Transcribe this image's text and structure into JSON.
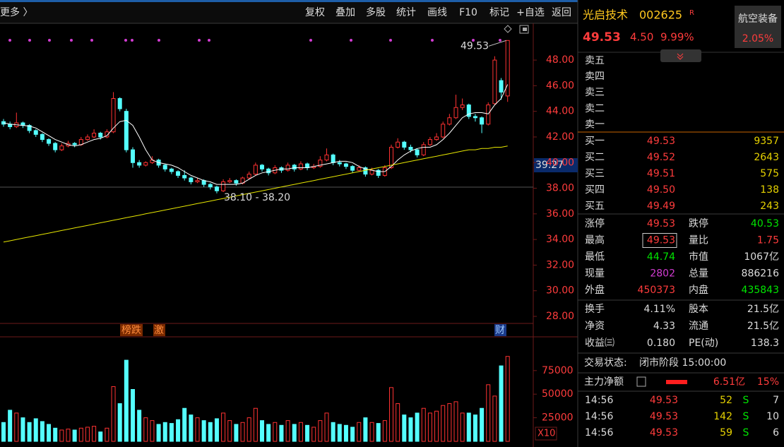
{
  "toolbar": {
    "back_link": "更多 〉",
    "buttons": [
      "复权",
      "叠加",
      "多股",
      "统计",
      "画线",
      "F10",
      "标记",
      "+自选",
      "返回"
    ]
  },
  "chart_data": [
    {
      "type": "candlestick",
      "candles": [
        [
          43.2,
          43.4,
          42.8,
          43.0
        ],
        [
          43.0,
          43.2,
          42.6,
          42.8
        ],
        [
          42.8,
          43.9,
          42.7,
          43.1
        ],
        [
          43.1,
          43.2,
          42.7,
          42.9
        ],
        [
          42.9,
          43.0,
          42.3,
          42.5
        ],
        [
          42.5,
          42.6,
          42.0,
          42.2
        ],
        [
          42.2,
          42.3,
          41.6,
          41.8
        ],
        [
          41.8,
          41.9,
          41.3,
          41.5
        ],
        [
          41.5,
          41.6,
          40.8,
          41.0
        ],
        [
          41.0,
          41.5,
          40.9,
          41.3
        ],
        [
          41.3,
          41.7,
          41.2,
          41.5
        ],
        [
          41.5,
          41.6,
          41.2,
          41.4
        ],
        [
          41.4,
          42.0,
          41.3,
          41.8
        ],
        [
          41.8,
          42.2,
          41.7,
          42.0
        ],
        [
          42.0,
          42.6,
          41.9,
          42.3
        ],
        [
          42.3,
          42.4,
          41.8,
          42.0
        ],
        [
          42.0,
          42.6,
          41.9,
          42.4
        ],
        [
          42.4,
          45.5,
          42.3,
          45.0
        ],
        [
          45.0,
          45.1,
          44.0,
          44.2
        ],
        [
          44.0,
          44.2,
          40.8,
          41.0
        ],
        [
          41.0,
          41.2,
          39.6,
          40.0
        ],
        [
          40.0,
          40.2,
          39.6,
          39.8
        ],
        [
          39.8,
          40.1,
          39.7,
          40.0
        ],
        [
          40.0,
          40.5,
          39.9,
          40.2
        ],
        [
          40.2,
          40.3,
          39.6,
          39.8
        ],
        [
          39.8,
          39.9,
          39.3,
          39.5
        ],
        [
          39.5,
          39.6,
          39.1,
          39.3
        ],
        [
          39.3,
          39.4,
          38.8,
          39.0
        ],
        [
          39.0,
          39.4,
          38.6,
          38.8
        ],
        [
          38.8,
          38.9,
          38.3,
          38.5
        ],
        [
          38.5,
          38.8,
          38.4,
          38.6
        ],
        [
          38.6,
          38.7,
          38.1,
          38.3
        ],
        [
          38.3,
          38.4,
          37.9,
          38.1
        ],
        [
          38.1,
          38.2,
          37.6,
          37.8
        ],
        [
          37.8,
          38.7,
          37.7,
          38.5
        ],
        [
          38.5,
          38.8,
          38.4,
          38.6
        ],
        [
          38.6,
          38.7,
          38.2,
          38.4
        ],
        [
          38.4,
          38.9,
          38.3,
          38.8
        ],
        [
          38.8,
          39.3,
          38.7,
          39.1
        ],
        [
          39.1,
          40.0,
          39.0,
          39.8
        ],
        [
          39.8,
          39.9,
          39.3,
          39.5
        ],
        [
          39.5,
          39.6,
          39.0,
          39.2
        ],
        [
          39.2,
          39.8,
          39.1,
          39.6
        ],
        [
          39.6,
          39.7,
          39.2,
          39.4
        ],
        [
          39.4,
          40.0,
          39.3,
          39.8
        ],
        [
          39.8,
          39.9,
          39.3,
          39.5
        ],
        [
          39.5,
          40.1,
          39.4,
          39.9
        ],
        [
          39.9,
          40.0,
          39.4,
          39.6
        ],
        [
          39.6,
          39.9,
          39.5,
          39.7
        ],
        [
          39.7,
          40.5,
          39.6,
          40.2
        ],
        [
          40.2,
          41.1,
          40.1,
          40.6
        ],
        [
          40.6,
          40.7,
          39.8,
          40.0
        ],
        [
          40.0,
          40.2,
          39.7,
          39.9
        ],
        [
          39.9,
          40.0,
          39.5,
          39.7
        ],
        [
          39.7,
          39.8,
          39.2,
          39.4
        ],
        [
          39.4,
          39.8,
          39.3,
          39.6
        ],
        [
          39.6,
          39.7,
          38.9,
          39.1
        ],
        [
          39.1,
          39.6,
          39.0,
          39.4
        ],
        [
          39.4,
          39.5,
          38.8,
          39.0
        ],
        [
          39.0,
          39.8,
          38.9,
          39.6
        ],
        [
          39.6,
          41.4,
          39.5,
          41.2
        ],
        [
          41.2,
          41.9,
          41.1,
          41.6
        ],
        [
          41.6,
          41.7,
          41.0,
          41.2
        ],
        [
          41.2,
          41.4,
          40.8,
          41.0
        ],
        [
          41.0,
          41.1,
          40.4,
          40.6
        ],
        [
          40.6,
          41.6,
          40.5,
          41.4
        ],
        [
          41.4,
          42.0,
          41.3,
          41.8
        ],
        [
          41.8,
          42.3,
          41.7,
          42.0
        ],
        [
          42.0,
          43.2,
          41.9,
          43.0
        ],
        [
          43.0,
          43.8,
          42.9,
          43.5
        ],
        [
          43.5,
          45.3,
          43.4,
          44.3
        ],
        [
          44.3,
          45.0,
          44.1,
          44.5
        ],
        [
          44.5,
          44.6,
          43.4,
          43.6
        ],
        [
          43.6,
          43.8,
          43.2,
          43.5
        ],
        [
          43.5,
          43.6,
          42.3,
          43.0
        ],
        [
          43.0,
          44.7,
          42.9,
          44.5
        ],
        [
          44.6,
          48.3,
          44.5,
          48.0
        ],
        [
          46.4,
          46.6,
          44.9,
          45.5
        ],
        [
          45.2,
          49.53,
          44.74,
          49.53
        ]
      ],
      "up_color": "#ff3232",
      "down_color": "#54ffff",
      "ma_lines": [
        {
          "color": "#ffffff",
          "values": [
            43.1,
            43.0,
            42.95,
            42.9,
            42.85,
            42.7,
            42.4,
            42.1,
            41.8,
            41.6,
            41.4,
            41.3,
            41.4,
            41.6,
            41.8,
            41.9,
            42.1,
            42.7,
            43.2,
            43.3,
            42.9,
            42.0,
            41.0,
            40.2,
            40.0,
            39.9,
            39.8,
            39.6,
            39.3,
            39.0,
            38.8,
            38.6,
            38.5,
            38.3,
            38.3,
            38.3,
            38.3,
            38.4,
            38.7,
            39.0,
            39.2,
            39.3,
            39.4,
            39.5,
            39.5,
            39.6,
            39.6,
            39.6,
            39.7,
            39.8,
            39.9,
            40.0,
            40.1,
            40.1,
            40.0,
            39.7,
            39.5,
            39.4,
            39.3,
            39.3,
            39.7,
            40.2,
            40.6,
            40.9,
            41.1,
            41.2,
            41.2,
            41.4,
            41.8,
            42.3,
            42.9,
            43.5,
            43.8,
            43.9,
            43.9,
            43.8,
            44.5,
            45.0,
            46.1
          ]
        },
        {
          "color": "#e6e600",
          "values": [
            33.8,
            33.9,
            34.0,
            34.1,
            34.2,
            34.3,
            34.4,
            34.5,
            34.6,
            34.7,
            34.8,
            34.9,
            35.0,
            35.1,
            35.2,
            35.3,
            35.4,
            35.5,
            35.6,
            35.7,
            35.8,
            35.9,
            36.0,
            36.1,
            36.2,
            36.3,
            36.4,
            36.5,
            36.6,
            36.7,
            36.8,
            36.9,
            37.0,
            37.1,
            37.2,
            37.3,
            37.4,
            37.5,
            37.6,
            37.7,
            37.8,
            37.9,
            38.0,
            38.1,
            38.2,
            38.3,
            38.4,
            38.5,
            38.6,
            38.7,
            38.8,
            38.9,
            39.0,
            39.1,
            39.2,
            39.3,
            39.4,
            39.5,
            39.6,
            39.7,
            39.8,
            39.9,
            40.0,
            40.1,
            40.2,
            40.3,
            40.4,
            40.5,
            40.6,
            40.7,
            40.8,
            40.9,
            41.0,
            41.0,
            41.1,
            41.1,
            41.2,
            41.2,
            41.3
          ]
        }
      ],
      "ylim": [
        27.45,
        50.87
      ],
      "yticks": [
        {
          "value": 28,
          "label": "28.00"
        },
        {
          "value": 30,
          "label": "30.00"
        },
        {
          "value": 32,
          "label": "32.00"
        },
        {
          "value": 34,
          "label": "34.00"
        },
        {
          "value": 36,
          "label": "36.00"
        },
        {
          "value": 38,
          "label": "38.00"
        },
        {
          "value": 40,
          "label": "40.00"
        },
        {
          "value": 42,
          "label": "42.00"
        },
        {
          "value": 44,
          "label": "44.00"
        },
        {
          "value": 46,
          "label": "46.00"
        },
        {
          "value": 48,
          "label": "48.00"
        }
      ],
      "max_label": "49.53",
      "min_label": "38.10 - 38.20",
      "cursor_label": "39.27"
    },
    {
      "type": "bar",
      "values": [
        20000,
        33000,
        30000,
        25000,
        20000,
        24000,
        21000,
        18000,
        14000,
        12000,
        13000,
        12000,
        14000,
        15000,
        16000,
        10000,
        14000,
        58000,
        40000,
        86000,
        55000,
        33000,
        25000,
        22000,
        18000,
        20000,
        19000,
        23000,
        35000,
        28000,
        25000,
        22000,
        20000,
        24000,
        30000,
        22000,
        18000,
        20000,
        25000,
        35000,
        22000,
        18000,
        20000,
        17000,
        22000,
        18000,
        20000,
        17000,
        15000,
        22000,
        30000,
        20000,
        18000,
        17000,
        15000,
        20000,
        25000,
        20000,
        19000,
        22000,
        57000,
        40000,
        28000,
        25000,
        30000,
        35000,
        30000,
        32000,
        38000,
        40000,
        42000,
        30000,
        30000,
        28000,
        35000,
        60000,
        48000,
        80000,
        90000
      ],
      "ylim": [
        0,
        110000
      ],
      "yticks": [
        25000,
        50000,
        75000
      ],
      "unit_label": "X10"
    }
  ],
  "chart_tags": [
    "榜跌",
    "激",
    "财"
  ],
  "quote": {
    "name": "光启技术",
    "code": "002625",
    "flag": "R",
    "price": "49.53",
    "change": "4.50",
    "change_pct": "9.99%",
    "sector": "航空装备",
    "sector_pct": "2.05%"
  },
  "order_book": {
    "asks": [
      "卖五",
      "卖四",
      "卖三",
      "卖二",
      "卖一"
    ],
    "bids": [
      {
        "label": "买一",
        "price": "49.53",
        "volume": "9357"
      },
      {
        "label": "买二",
        "price": "49.52",
        "volume": "2643"
      },
      {
        "label": "买三",
        "price": "49.51",
        "volume": "575"
      },
      {
        "label": "买四",
        "price": "49.50",
        "volume": "138"
      },
      {
        "label": "买五",
        "price": "49.49",
        "volume": "243"
      }
    ]
  },
  "stats": [
    [
      {
        "label": "涨停",
        "value": "49.53",
        "color": "#ff3c3c"
      },
      {
        "label": "跌停",
        "value": "40.53",
        "color": "#00e600"
      }
    ],
    [
      {
        "label": "最高",
        "value": "49.53",
        "color": "#ff3c3c",
        "boxed": true
      },
      {
        "label": "量比",
        "value": "1.75",
        "color": "#ff3c3c"
      }
    ],
    [
      {
        "label": "最低",
        "value": "44.74",
        "color": "#00e600"
      },
      {
        "label": "市值",
        "value": "1067亿",
        "color": "#dcdcdc"
      }
    ],
    [
      {
        "label": "现量",
        "value": "2802",
        "color": "#d23cd2"
      },
      {
        "label": "总量",
        "value": "886216",
        "color": "#dcdcdc"
      }
    ],
    [
      {
        "label": "外盘",
        "value": "450373",
        "color": "#ff3c3c"
      },
      {
        "label": "内盘",
        "value": "435843",
        "color": "#00e600"
      }
    ]
  ],
  "fundamentals": [
    [
      {
        "label": "换手",
        "value": "4.11%"
      },
      {
        "label": "股本",
        "value": "21.5亿"
      }
    ],
    [
      {
        "label": "净资",
        "value": "4.33"
      },
      {
        "label": "流通",
        "value": "21.5亿"
      }
    ],
    [
      {
        "label": "收益㈢",
        "value": "0.180"
      },
      {
        "label": "PE(动)",
        "value": "138.3"
      }
    ]
  ],
  "status": {
    "label": "交易状态:",
    "value": "闭市阶段 15:00:00"
  },
  "main_flow": {
    "label": "主力净额",
    "value": "6.51亿",
    "pct": "15%"
  },
  "trades": [
    [
      "14:56",
      "49.53",
      "52",
      "S",
      "7"
    ],
    [
      "14:56",
      "49.53",
      "142",
      "S",
      "10"
    ],
    [
      "14:56",
      "49.53",
      "59",
      "S",
      "6"
    ]
  ]
}
